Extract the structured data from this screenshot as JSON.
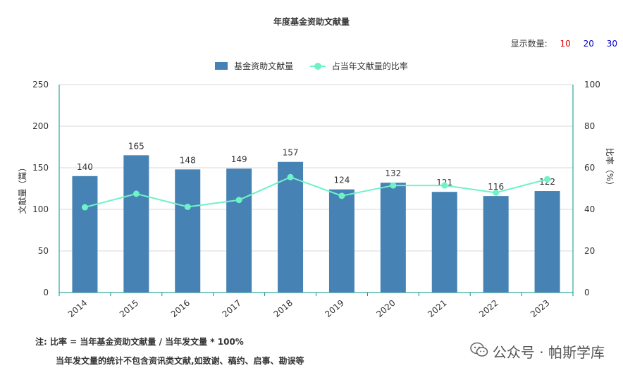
{
  "title": "年度基金资助文献量",
  "count_selector": {
    "label": "显示数量:",
    "options": [
      {
        "label": "10",
        "color": "#e60000"
      },
      {
        "label": "20",
        "color": "#0000cc"
      },
      {
        "label": "30",
        "color": "#0000cc"
      }
    ]
  },
  "legend": {
    "bar_label": "基金资助文献量",
    "line_label": "占当年文献量的比率"
  },
  "chart_data": {
    "type": "bar",
    "categories": [
      "2014",
      "2015",
      "2016",
      "2017",
      "2018",
      "2019",
      "2020",
      "2021",
      "2022",
      "2023"
    ],
    "series": [
      {
        "name": "基金资助文献量",
        "type": "bar",
        "axis": "left",
        "color": "#4682b4",
        "values": [
          140,
          165,
          148,
          149,
          157,
          124,
          132,
          121,
          116,
          122
        ]
      },
      {
        "name": "占当年文献量的比率",
        "type": "line",
        "axis": "right",
        "color": "#6ff2c8",
        "values": [
          41.0,
          47.5,
          41.2,
          44.5,
          55.5,
          46.5,
          51.5,
          51.5,
          48.0,
          54.5
        ]
      }
    ],
    "ylabel": "文献量（篇）",
    "ylim": [
      0,
      250
    ],
    "yticks": [
      0,
      50,
      100,
      150,
      200,
      250
    ],
    "y2label": "比率（%）",
    "y2lim": [
      0,
      100
    ],
    "y2ticks": [
      0,
      20,
      40,
      60,
      80,
      100
    ],
    "grid": true,
    "legend_position": "top-center"
  },
  "notes": {
    "line1": "注:   比率 = 当年基金资助文献量 / 当年发文量 * 100%",
    "line2": "当年发文量的统计不包含资讯类文献,如致谢、稿约、启事、勘误等"
  },
  "watermark": {
    "icon": "wechat-icon",
    "text": "公众号 · 帕斯学库"
  }
}
